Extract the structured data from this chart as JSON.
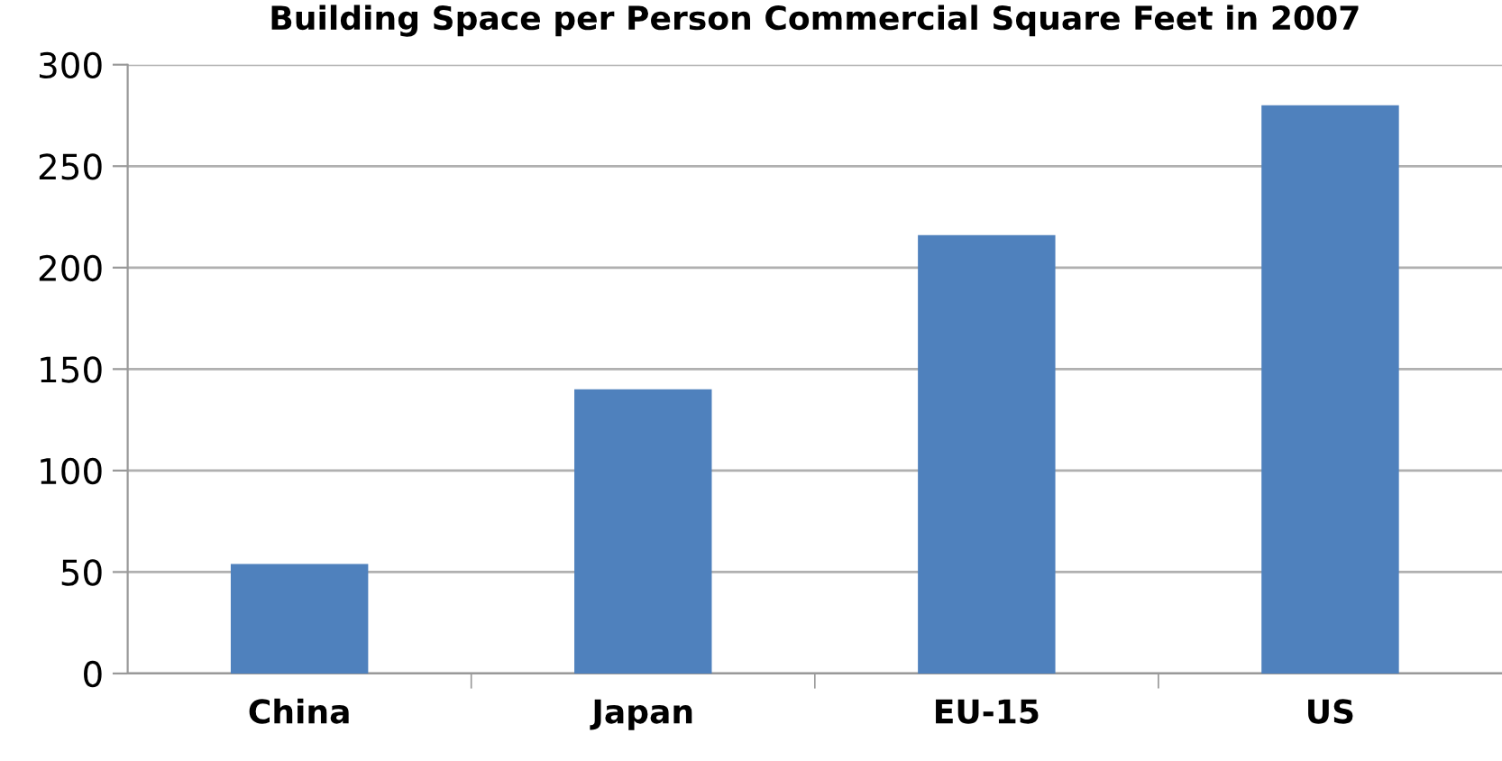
{
  "chart_data": {
    "type": "bar",
    "title": "Building Space per Person Commercial Square Feet in 2007",
    "categories": [
      "China",
      "Japan",
      "EU-15",
      "US"
    ],
    "values": [
      54,
      140,
      216,
      280
    ],
    "color": "#4f81bd",
    "ylim": [
      0,
      300
    ],
    "yticks": [
      0,
      50,
      100,
      150,
      200,
      250,
      300
    ],
    "grid": "y"
  }
}
